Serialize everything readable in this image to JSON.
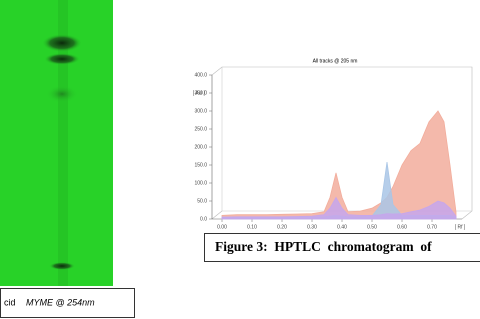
{
  "plate_caption": {
    "prefix": "cid",
    "label": "MYME @ 254nm"
  },
  "figure_caption": "Figure 3:  HPTLC  chromatogram  of",
  "chart_data": {
    "type": "area",
    "title": "All tracks @ 205 nm",
    "y_unit": "[ AU ]",
    "x_unit": "[ Rf ]",
    "x": [
      0.0,
      0.05,
      0.1,
      0.15,
      0.2,
      0.25,
      0.3,
      0.34,
      0.36,
      0.38,
      0.4,
      0.42,
      0.46,
      0.5,
      0.53,
      0.55,
      0.57,
      0.6,
      0.63,
      0.66,
      0.69,
      0.72,
      0.74,
      0.76,
      0.78
    ],
    "series": [
      {
        "color": "#f2ad9c",
        "values": [
          10,
          12,
          12,
          12,
          13,
          14,
          15,
          20,
          60,
          128,
          60,
          20,
          22,
          30,
          45,
          60,
          90,
          150,
          190,
          210,
          270,
          300,
          270,
          150,
          20
        ]
      },
      {
        "color": "#a9c6e6",
        "values": [
          5,
          5,
          5,
          5,
          5,
          5,
          5,
          6,
          8,
          10,
          8,
          6,
          6,
          8,
          40,
          158,
          40,
          10,
          10,
          10,
          10,
          10,
          10,
          10,
          5
        ]
      },
      {
        "color": "#c6a6ec",
        "values": [
          5,
          6,
          6,
          6,
          6,
          7,
          8,
          12,
          30,
          60,
          30,
          12,
          10,
          10,
          12,
          15,
          14,
          15,
          20,
          25,
          35,
          50,
          45,
          30,
          8
        ]
      }
    ],
    "xlim": [
      0,
      0.8
    ],
    "ylim": [
      0,
      400
    ],
    "xticks": [
      {
        "value": 0,
        "label": "0.00"
      },
      {
        "value": 0.1,
        "label": "0.10"
      },
      {
        "value": 0.2,
        "label": "0.20"
      },
      {
        "value": 0.3,
        "label": "0.30"
      },
      {
        "value": 0.4,
        "label": "0.40"
      },
      {
        "value": 0.5,
        "label": "0.50"
      },
      {
        "value": 0.6,
        "label": "0.60"
      },
      {
        "value": 0.7,
        "label": "0.70"
      }
    ],
    "yticks": [
      {
        "value": 0,
        "label": "0.0"
      },
      {
        "value": 50,
        "label": "50.0"
      },
      {
        "value": 100,
        "label": "100.0"
      },
      {
        "value": 150,
        "label": "150.0"
      },
      {
        "value": 200,
        "label": "200.0"
      },
      {
        "value": 250,
        "label": "250.0"
      },
      {
        "value": 300,
        "label": "300.0"
      },
      {
        "value": 350,
        "label": "350.0"
      },
      {
        "value": 400,
        "label": "400.0"
      }
    ]
  }
}
